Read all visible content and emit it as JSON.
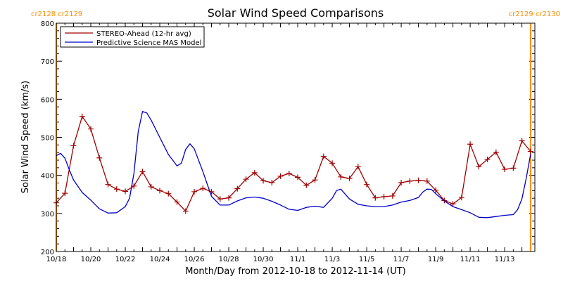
{
  "chart_data": {
    "type": "line",
    "title": "Solar Wind Speed Comparisons",
    "xlabel": "Month/Day from 2012-10-18 to 2012-11-14 (UT)",
    "ylabel": "Solar Wind Speed (km/s)",
    "ylim": [
      200,
      800
    ],
    "xlim": [
      "2012-10-18",
      "2012-11-14T18:00"
    ],
    "x_tick_labels": [
      "10/18",
      "10/20",
      "10/22",
      "10/24",
      "10/26",
      "10/28",
      "10/30",
      "11/1",
      "11/3",
      "11/5",
      "11/7",
      "11/9",
      "11/11",
      "11/13"
    ],
    "x_tick_dates": [
      "2012-10-18",
      "2012-10-20",
      "2012-10-22",
      "2012-10-24",
      "2012-10-26",
      "2012-10-28",
      "2012-10-30",
      "2012-11-01",
      "2012-11-03",
      "2012-11-05",
      "2012-11-07",
      "2012-11-09",
      "2012-11-11",
      "2012-11-13"
    ],
    "y_ticks": [
      200,
      300,
      400,
      500,
      600,
      700,
      800
    ],
    "grid": false,
    "legend_position": "top-left",
    "rotation_markers": [
      {
        "label": "cr2128 cr2129",
        "date": "2012-10-18",
        "color": "#ff8c00"
      },
      {
        "label": "cr2129 cr2130",
        "date": "2012-11-14T12:00",
        "color": "#ff8c00"
      }
    ],
    "series": [
      {
        "name": "STEREO-Ahead (12-hr avg)",
        "color": "#a00000",
        "marker": "plus",
        "points": [
          [
            "2012-10-18T00:00",
            328
          ],
          [
            "2012-10-18T12:00",
            353
          ],
          [
            "2012-10-19T00:00",
            478
          ],
          [
            "2012-10-19T12:00",
            555
          ],
          [
            "2012-10-20T00:00",
            522
          ],
          [
            "2012-10-20T12:00",
            446
          ],
          [
            "2012-10-21T00:00",
            376
          ],
          [
            "2012-10-21T12:00",
            364
          ],
          [
            "2012-10-22T00:00",
            358
          ],
          [
            "2012-10-22T12:00",
            372
          ],
          [
            "2012-10-23T00:00",
            410
          ],
          [
            "2012-10-23T12:00",
            370
          ],
          [
            "2012-10-24T00:00",
            360
          ],
          [
            "2012-10-24T12:00",
            352
          ],
          [
            "2012-10-25T00:00",
            330
          ],
          [
            "2012-10-25T12:00",
            306
          ],
          [
            "2012-10-26T00:00",
            357
          ],
          [
            "2012-10-26T12:00",
            366
          ],
          [
            "2012-10-27T00:00",
            357
          ],
          [
            "2012-10-27T12:00",
            338
          ],
          [
            "2012-10-28T00:00",
            341
          ],
          [
            "2012-10-28T12:00",
            365
          ],
          [
            "2012-10-29T00:00",
            390
          ],
          [
            "2012-10-29T12:00",
            407
          ],
          [
            "2012-10-30T00:00",
            386
          ],
          [
            "2012-10-30T12:00",
            381
          ],
          [
            "2012-10-31T00:00",
            398
          ],
          [
            "2012-10-31T12:00",
            405
          ],
          [
            "2012-11-01T00:00",
            395
          ],
          [
            "2012-11-01T12:00",
            374
          ],
          [
            "2012-11-02T00:00",
            388
          ],
          [
            "2012-11-02T12:00",
            450
          ],
          [
            "2012-11-03T00:00",
            432
          ],
          [
            "2012-11-03T12:00",
            396
          ],
          [
            "2012-11-04T00:00",
            392
          ],
          [
            "2012-11-04T12:00",
            423
          ],
          [
            "2012-11-05T00:00",
            376
          ],
          [
            "2012-11-05T12:00",
            341
          ],
          [
            "2012-11-06T00:00",
            344
          ],
          [
            "2012-11-06T12:00",
            346
          ],
          [
            "2012-11-07T00:00",
            381
          ],
          [
            "2012-11-07T12:00",
            385
          ],
          [
            "2012-11-08T00:00",
            387
          ],
          [
            "2012-11-08T12:00",
            385
          ],
          [
            "2012-11-09T00:00",
            361
          ],
          [
            "2012-11-09T12:00",
            334
          ],
          [
            "2012-11-10T00:00",
            325
          ],
          [
            "2012-11-10T12:00",
            342
          ],
          [
            "2012-11-11T00:00",
            482
          ],
          [
            "2012-11-11T12:00",
            423
          ],
          [
            "2012-11-12T00:00",
            442
          ],
          [
            "2012-11-12T12:00",
            461
          ],
          [
            "2012-11-13T00:00",
            416
          ],
          [
            "2012-11-13T12:00",
            419
          ],
          [
            "2012-11-14T00:00",
            491
          ],
          [
            "2012-11-14T12:00",
            463
          ]
        ]
      },
      {
        "name": "Predictive Science MAS Model",
        "color": "#0000c8",
        "marker": "none",
        "points": [
          [
            "2012-10-18T00:00",
            452
          ],
          [
            "2012-10-18T06:00",
            458
          ],
          [
            "2012-10-18T12:00",
            445
          ],
          [
            "2012-10-18T18:00",
            415
          ],
          [
            "2012-10-19T00:00",
            388
          ],
          [
            "2012-10-19T12:00",
            355
          ],
          [
            "2012-10-20T00:00",
            335
          ],
          [
            "2012-10-20T12:00",
            312
          ],
          [
            "2012-10-21T00:00",
            301
          ],
          [
            "2012-10-21T12:00",
            302
          ],
          [
            "2012-10-22T00:00",
            318
          ],
          [
            "2012-10-22T06:00",
            340
          ],
          [
            "2012-10-22T12:00",
            405
          ],
          [
            "2012-10-22T18:00",
            515
          ],
          [
            "2012-10-23T00:00",
            568
          ],
          [
            "2012-10-23T06:00",
            564
          ],
          [
            "2012-10-23T12:00",
            545
          ],
          [
            "2012-10-24T00:00",
            500
          ],
          [
            "2012-10-24T12:00",
            455
          ],
          [
            "2012-10-25T00:00",
            425
          ],
          [
            "2012-10-25T06:00",
            432
          ],
          [
            "2012-10-25T12:00",
            468
          ],
          [
            "2012-10-25T18:00",
            483
          ],
          [
            "2012-10-26T00:00",
            470
          ],
          [
            "2012-10-26T12:00",
            410
          ],
          [
            "2012-10-27T00:00",
            345
          ],
          [
            "2012-10-27T12:00",
            322
          ],
          [
            "2012-10-28T00:00",
            322
          ],
          [
            "2012-10-28T12:00",
            333
          ],
          [
            "2012-10-29T00:00",
            341
          ],
          [
            "2012-10-29T12:00",
            343
          ],
          [
            "2012-10-30T00:00",
            340
          ],
          [
            "2012-10-30T12:00",
            332
          ],
          [
            "2012-10-31T00:00",
            322
          ],
          [
            "2012-10-31T12:00",
            311
          ],
          [
            "2012-11-01T00:00",
            308
          ],
          [
            "2012-11-01T12:00",
            316
          ],
          [
            "2012-11-02T00:00",
            319
          ],
          [
            "2012-11-02T12:00",
            316
          ],
          [
            "2012-11-03T00:00",
            340
          ],
          [
            "2012-11-03T06:00",
            360
          ],
          [
            "2012-11-03T12:00",
            364
          ],
          [
            "2012-11-04T00:00",
            338
          ],
          [
            "2012-11-04T12:00",
            324
          ],
          [
            "2012-11-05T00:00",
            320
          ],
          [
            "2012-11-05T12:00",
            318
          ],
          [
            "2012-11-06T00:00",
            318
          ],
          [
            "2012-11-06T12:00",
            322
          ],
          [
            "2012-11-07T00:00",
            330
          ],
          [
            "2012-11-07T12:00",
            334
          ],
          [
            "2012-11-08T00:00",
            342
          ],
          [
            "2012-11-08T06:00",
            356
          ],
          [
            "2012-11-08T12:00",
            364
          ],
          [
            "2012-11-08T18:00",
            363
          ],
          [
            "2012-11-09T00:00",
            352
          ],
          [
            "2012-11-09T12:00",
            333
          ],
          [
            "2012-11-10T00:00",
            318
          ],
          [
            "2012-11-10T12:00",
            310
          ],
          [
            "2012-11-11T00:00",
            302
          ],
          [
            "2012-11-11T12:00",
            290
          ],
          [
            "2012-11-12T00:00",
            289
          ],
          [
            "2012-11-12T12:00",
            292
          ],
          [
            "2012-11-13T00:00",
            295
          ],
          [
            "2012-11-13T12:00",
            297
          ],
          [
            "2012-11-13T18:00",
            310
          ],
          [
            "2012-11-14T00:00",
            338
          ],
          [
            "2012-11-14T06:00",
            392
          ],
          [
            "2012-11-14T12:00",
            455
          ]
        ]
      }
    ]
  }
}
